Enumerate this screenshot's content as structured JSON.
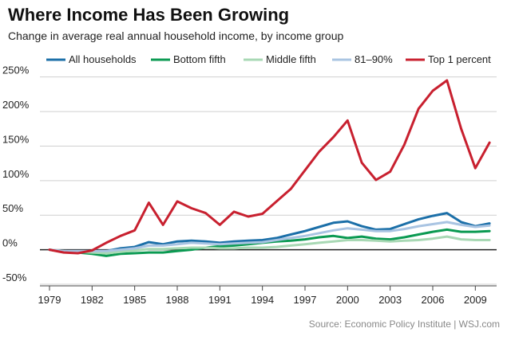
{
  "header": {
    "title": "Where Income Has Been Growing",
    "subtitle": "Change in average real annual household income, by income group"
  },
  "footer": {
    "source": "Source: Economic Policy Institute  |  WSJ.com"
  },
  "chart_data": {
    "type": "line",
    "title": "Where Income Has Been Growing",
    "subtitle": "Change in average real annual household income, by income group",
    "xlabel": "",
    "ylabel": "",
    "x": [
      1979,
      1980,
      1981,
      1982,
      1983,
      1984,
      1985,
      1986,
      1987,
      1988,
      1989,
      1990,
      1991,
      1992,
      1993,
      1994,
      1995,
      1996,
      1997,
      1998,
      1999,
      2000,
      2001,
      2002,
      2003,
      2004,
      2005,
      2006,
      2007,
      2008,
      2009,
      2010
    ],
    "xticks": [
      1979,
      1982,
      1985,
      1988,
      1991,
      1994,
      1997,
      2000,
      2003,
      2006,
      2009
    ],
    "yticks": [
      -50,
      0,
      50,
      100,
      150,
      200,
      250
    ],
    "ytick_labels": [
      "-50%",
      "0%",
      "50%",
      "100%",
      "150%",
      "200%",
      "250%"
    ],
    "ylim": [
      -50,
      260
    ],
    "xlim": [
      1979,
      2010.5
    ],
    "grid": true,
    "legend_position": "top",
    "series": [
      {
        "name": "All households",
        "color": "#1b6fa8",
        "values": [
          0,
          -3,
          -3,
          -2,
          -2,
          2,
          4,
          11,
          8,
          12,
          13,
          12,
          10,
          12,
          13,
          14,
          17,
          22,
          27,
          33,
          39,
          41,
          34,
          29,
          30,
          37,
          44,
          49,
          53,
          40,
          34,
          38
        ]
      },
      {
        "name": "Bottom fifth",
        "color": "#0b9a52",
        "values": [
          0,
          -3,
          -4,
          -6,
          -9,
          -6,
          -5,
          -4,
          -4,
          -2,
          0,
          3,
          5,
          6,
          8,
          10,
          12,
          13,
          15,
          18,
          20,
          17,
          19,
          16,
          15,
          18,
          22,
          26,
          29,
          26,
          26,
          27
        ]
      },
      {
        "name": "Middle fifth",
        "color": "#a8d8b4",
        "values": [
          0,
          -2,
          -3,
          -4,
          -5,
          -3,
          -1,
          1,
          1,
          2,
          3,
          3,
          2,
          2,
          3,
          3,
          4,
          6,
          8,
          10,
          12,
          14,
          14,
          13,
          12,
          13,
          14,
          16,
          19,
          15,
          14,
          14
        ]
      },
      {
        "name": "81–90%",
        "color": "#a9c4e2",
        "values": [
          0,
          -2,
          -2,
          -2,
          -2,
          0,
          2,
          6,
          6,
          8,
          10,
          9,
          8,
          9,
          10,
          11,
          14,
          17,
          20,
          24,
          28,
          31,
          29,
          27,
          27,
          30,
          34,
          37,
          40,
          36,
          33,
          35
        ]
      },
      {
        "name": "Top 1 percent",
        "color": "#c8202f",
        "values": [
          0,
          -4,
          -5,
          -1,
          10,
          20,
          28,
          68,
          36,
          70,
          60,
          53,
          36,
          55,
          48,
          52,
          70,
          88,
          115,
          142,
          163,
          187,
          126,
          101,
          113,
          152,
          204,
          230,
          245,
          175,
          118,
          155
        ]
      }
    ]
  }
}
